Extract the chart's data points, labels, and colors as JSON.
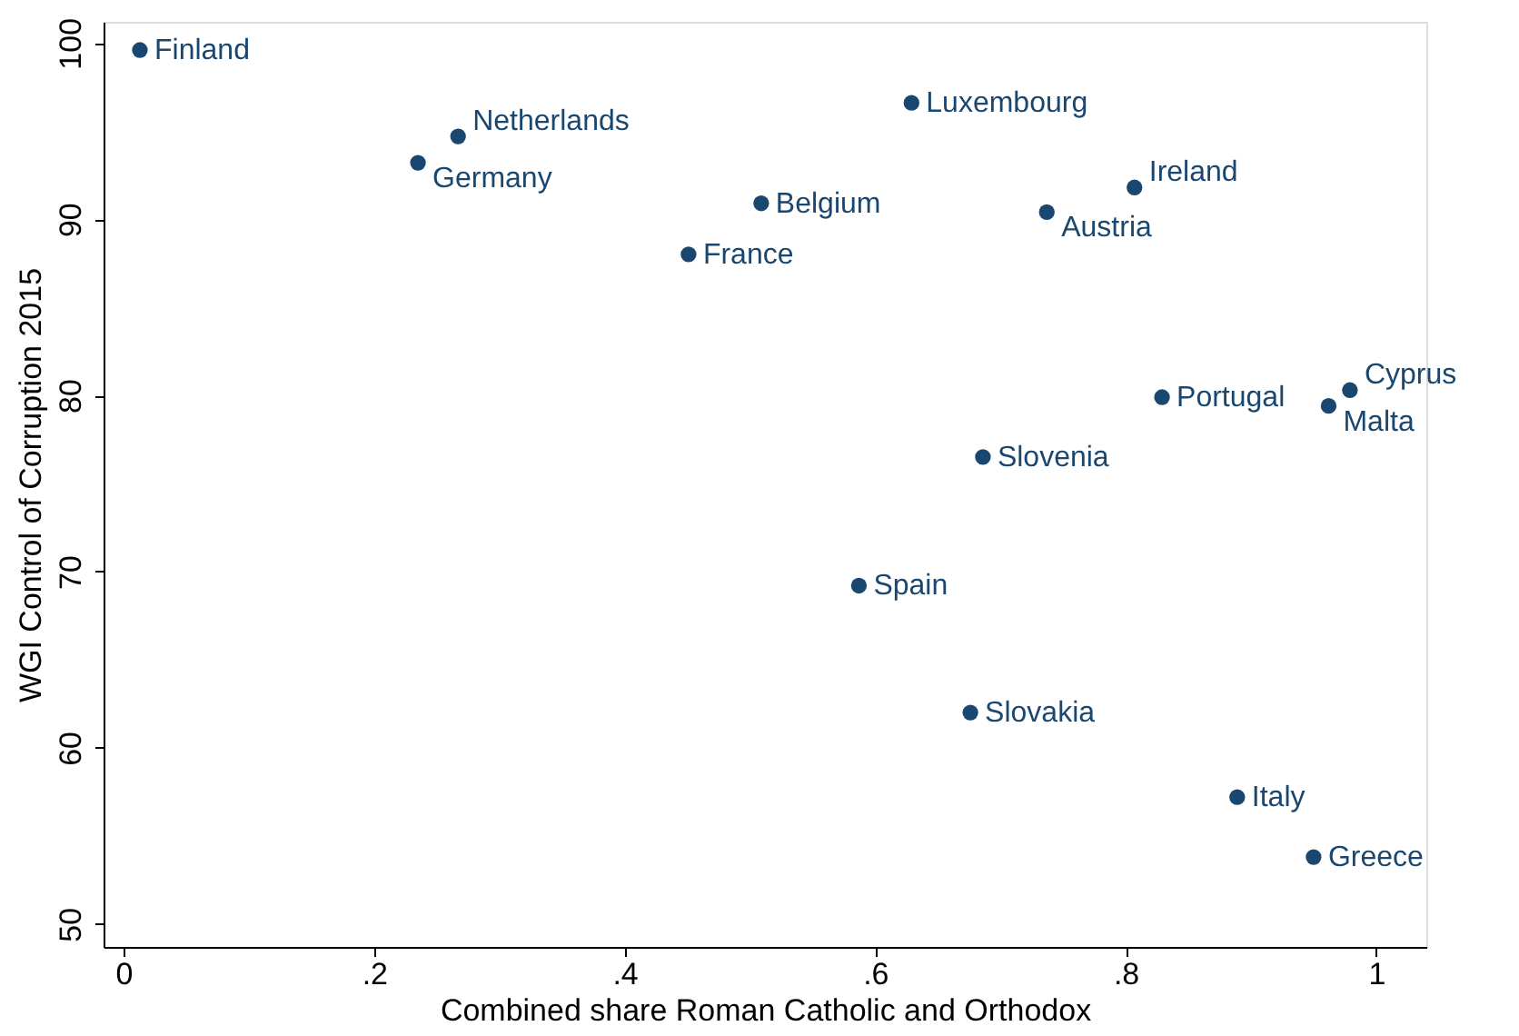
{
  "chart_data": {
    "type": "scatter",
    "xlabel": "Combined share Roman Catholic and Orthodox",
    "ylabel": "WGI Control of Corruption 2015",
    "x": [
      0.013,
      0.267,
      0.235,
      0.629,
      0.509,
      0.451,
      0.807,
      0.737,
      0.829,
      0.979,
      0.962,
      0.686,
      0.587,
      0.676,
      0.889,
      0.95
    ],
    "series": [
      {
        "color": "#1a476f",
        "values": [
          99.6,
          94.7,
          93.2,
          96.6,
          90.9,
          88.0,
          91.8,
          90.4,
          79.9,
          80.3,
          79.4,
          76.5,
          69.2,
          62.0,
          57.2,
          53.8
        ]
      }
    ],
    "annotations": [
      {
        "text": "Finland",
        "x": 0.013,
        "y": 99.6
      },
      {
        "text": "Netherlands",
        "x": 0.267,
        "y": 94.7
      },
      {
        "text": "Germany",
        "x": 0.235,
        "y": 93.2
      },
      {
        "text": "Luxembourg",
        "x": 0.629,
        "y": 96.6
      },
      {
        "text": "Belgium",
        "x": 0.509,
        "y": 90.9
      },
      {
        "text": "France",
        "x": 0.451,
        "y": 88.0
      },
      {
        "text": "Ireland",
        "x": 0.807,
        "y": 91.8
      },
      {
        "text": "Austria",
        "x": 0.737,
        "y": 90.4
      },
      {
        "text": "Portugal",
        "x": 0.829,
        "y": 79.9
      },
      {
        "text": "Cyprus",
        "x": 0.979,
        "y": 80.3
      },
      {
        "text": "Malta",
        "x": 0.962,
        "y": 79.4
      },
      {
        "text": "Slovenia",
        "x": 0.686,
        "y": 76.5
      },
      {
        "text": "Spain",
        "x": 0.587,
        "y": 69.2
      },
      {
        "text": "Slovakia",
        "x": 0.676,
        "y": 62.0
      },
      {
        "text": "Italy",
        "x": 0.889,
        "y": 57.2
      },
      {
        "text": "Greece",
        "x": 0.95,
        "y": 53.8
      }
    ],
    "xlim": [
      -0.016,
      1.04
    ],
    "ylim": [
      48.7,
      101.2
    ],
    "xticks": [
      0,
      {
        "value": 0.2,
        "label": ".2"
      },
      {
        "value": 0.4,
        "label": ".4"
      },
      {
        "value": 0.6,
        "label": ".6"
      },
      {
        "value": 0.8,
        "label": ".8"
      },
      1
    ],
    "yticks": [
      50,
      60,
      70,
      80,
      90,
      100
    ],
    "marker": "circle",
    "grid": false
  }
}
